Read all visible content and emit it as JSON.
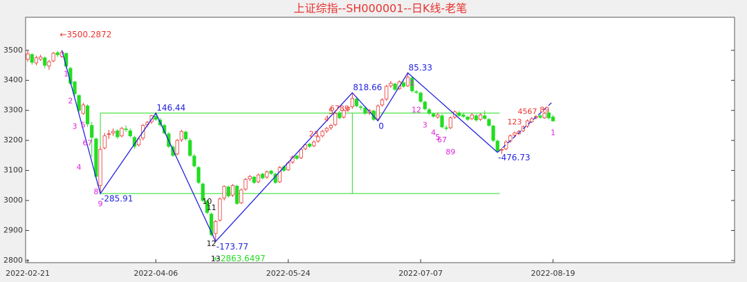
{
  "chart_data": {
    "type": "candlestick",
    "title": "上证综指--SH000001--日K线-老笔",
    "xlim": [
      -0.5,
      165.5
    ],
    "ylim": [
      2793,
      3610
    ],
    "yticks": [
      2800,
      2900,
      3000,
      3100,
      3200,
      3300,
      3400,
      3500
    ],
    "xticks": [
      {
        "value": 0,
        "label": "2022-02-21"
      },
      {
        "value": 30,
        "label": "2022-04-06"
      },
      {
        "value": 61,
        "label": "2022-05-24"
      },
      {
        "value": 92,
        "label": "2022-07-07"
      },
      {
        "value": 123,
        "label": "2022-08-19"
      }
    ],
    "up_color": "#e8332f",
    "down_color": "#22dd22",
    "candles": [
      [
        3470,
        3500,
        3462,
        3488
      ],
      [
        3486,
        3490,
        3452,
        3460
      ],
      [
        3458,
        3482,
        3450,
        3475
      ],
      [
        3470,
        3485,
        3465,
        3478
      ],
      [
        3475,
        3480,
        3440,
        3450
      ],
      [
        3448,
        3468,
        3435,
        3462
      ],
      [
        3465,
        3495,
        3460,
        3490
      ],
      [
        3492,
        3498,
        3478,
        3485
      ],
      [
        3480,
        3500.29,
        3475,
        3494
      ],
      [
        3490,
        3492,
        3440,
        3447
      ],
      [
        3440,
        3445,
        3385,
        3390
      ],
      [
        3395,
        3398,
        3345,
        3355
      ],
      [
        3350,
        3352,
        3292,
        3300
      ],
      [
        3290,
        3325,
        3285,
        3318
      ],
      [
        3315,
        3320,
        3245,
        3255
      ],
      [
        3250,
        3262,
        3145,
        3210
      ],
      [
        3205,
        3210,
        3070,
        3080
      ],
      [
        3050,
        3180,
        3023,
        3170
      ],
      [
        3175,
        3225,
        3170,
        3215
      ],
      [
        3220,
        3235,
        3205,
        3222
      ],
      [
        3225,
        3240,
        3215,
        3230
      ],
      [
        3232,
        3238,
        3205,
        3212
      ],
      [
        3215,
        3245,
        3210,
        3240
      ],
      [
        3238,
        3250,
        3228,
        3236
      ],
      [
        3232,
        3240,
        3210,
        3215
      ],
      [
        3210,
        3215,
        3172,
        3180
      ],
      [
        3185,
        3212,
        3180,
        3205
      ],
      [
        3208,
        3255,
        3200,
        3250
      ],
      [
        3252,
        3265,
        3245,
        3260
      ],
      [
        3262,
        3285,
        3255,
        3282
      ],
      [
        3280,
        3291,
        3265,
        3270
      ],
      [
        3268,
        3275,
        3245,
        3252
      ],
      [
        3250,
        3255,
        3220,
        3225
      ],
      [
        3222,
        3228,
        3175,
        3180
      ],
      [
        3178,
        3185,
        3145,
        3150
      ],
      [
        3155,
        3205,
        3150,
        3200
      ],
      [
        3202,
        3235,
        3195,
        3230
      ],
      [
        3228,
        3232,
        3200,
        3205
      ],
      [
        3200,
        3208,
        3145,
        3150
      ],
      [
        3148,
        3155,
        3110,
        3115
      ],
      [
        3110,
        3115,
        3055,
        3060
      ],
      [
        3055,
        3060,
        2995,
        3000
      ],
      [
        2998,
        3002,
        2955,
        2960
      ],
      [
        2955,
        2960,
        2880,
        2886
      ],
      [
        2890,
        2935,
        2863.65,
        2930
      ],
      [
        2935,
        3010,
        2930,
        3005
      ],
      [
        3008,
        3050,
        3000,
        3047
      ],
      [
        3045,
        3050,
        3010,
        3015
      ],
      [
        3018,
        3055,
        3012,
        3050
      ],
      [
        3048,
        3052,
        2985,
        2990
      ],
      [
        2992,
        3040,
        2988,
        3035
      ],
      [
        3038,
        3075,
        3032,
        3070
      ],
      [
        3072,
        3085,
        3065,
        3080
      ],
      [
        3078,
        3082,
        3055,
        3060
      ],
      [
        3062,
        3090,
        3058,
        3085
      ],
      [
        3088,
        3092,
        3070,
        3075
      ],
      [
        3078,
        3100,
        3072,
        3095
      ],
      [
        3098,
        3102,
        3085,
        3090
      ],
      [
        3088,
        3092,
        3055,
        3060
      ],
      [
        3062,
        3115,
        3058,
        3110
      ],
      [
        3112,
        3118,
        3095,
        3100
      ],
      [
        3102,
        3130,
        3098,
        3125
      ],
      [
        3128,
        3150,
        3122,
        3145
      ],
      [
        3148,
        3152,
        3135,
        3140
      ],
      [
        3142,
        3175,
        3138,
        3170
      ],
      [
        3172,
        3190,
        3168,
        3185
      ],
      [
        3188,
        3192,
        3175,
        3180
      ],
      [
        3182,
        3200,
        3178,
        3195
      ],
      [
        3198,
        3218,
        3192,
        3212
      ],
      [
        3215,
        3235,
        3210,
        3230
      ],
      [
        3232,
        3245,
        3225,
        3240
      ],
      [
        3242,
        3255,
        3235,
        3250
      ],
      [
        3252,
        3295,
        3248,
        3290
      ],
      [
        3292,
        3298,
        3270,
        3275
      ],
      [
        3278,
        3305,
        3272,
        3300
      ],
      [
        3302,
        3315,
        3295,
        3310
      ],
      [
        3312,
        3358.66,
        3305,
        3340
      ],
      [
        3338,
        3345,
        3310,
        3315
      ],
      [
        3312,
        3318,
        3300,
        3310
      ],
      [
        3308,
        3312,
        3285,
        3290
      ],
      [
        3292,
        3305,
        3285,
        3300
      ],
      [
        3298,
        3302,
        3265,
        3270
      ],
      [
        3272,
        3320,
        3265,
        3315
      ],
      [
        3318,
        3340,
        3312,
        3335
      ],
      [
        3338,
        3385,
        3332,
        3380
      ],
      [
        3382,
        3398,
        3375,
        3390
      ],
      [
        3388,
        3392,
        3365,
        3370
      ],
      [
        3372,
        3400,
        3368,
        3395
      ],
      [
        3392,
        3398,
        3375,
        3380
      ],
      [
        3382,
        3425,
        3378,
        3410
      ],
      [
        3408,
        3412,
        3360,
        3365
      ],
      [
        3362,
        3368,
        3355,
        3360
      ],
      [
        3358,
        3362,
        3325,
        3330
      ],
      [
        3328,
        3332,
        3300,
        3305
      ],
      [
        3302,
        3308,
        3285,
        3290
      ],
      [
        3288,
        3292,
        3275,
        3280
      ],
      [
        3278,
        3292,
        3272,
        3285
      ],
      [
        3282,
        3288,
        3240,
        3245
      ],
      [
        3242,
        3250,
        3232,
        3240
      ],
      [
        3242,
        3280,
        3238,
        3275
      ],
      [
        3278,
        3300,
        3272,
        3295
      ],
      [
        3292,
        3298,
        3278,
        3283
      ],
      [
        3285,
        3290,
        3275,
        3280
      ],
      [
        3278,
        3282,
        3265,
        3270
      ],
      [
        3272,
        3290,
        3268,
        3285
      ],
      [
        3282,
        3288,
        3262,
        3268
      ],
      [
        3270,
        3290,
        3265,
        3285
      ],
      [
        3282,
        3300,
        3270,
        3273
      ],
      [
        3270,
        3275,
        3245,
        3250
      ],
      [
        3248,
        3252,
        3195,
        3200
      ],
      [
        3198,
        3202,
        3160,
        3165
      ],
      [
        3168,
        3175,
        3155,
        3170
      ],
      [
        3172,
        3200,
        3168,
        3195
      ],
      [
        3198,
        3220,
        3192,
        3215
      ],
      [
        3218,
        3230,
        3212,
        3225
      ],
      [
        3222,
        3235,
        3218,
        3230
      ],
      [
        3232,
        3250,
        3228,
        3245
      ],
      [
        3248,
        3270,
        3242,
        3265
      ],
      [
        3262,
        3278,
        3258,
        3272
      ],
      [
        3275,
        3285,
        3270,
        3280
      ],
      [
        3282,
        3288,
        3272,
        3277
      ],
      [
        3275,
        3295,
        3272,
        3290
      ],
      [
        3292,
        3298,
        3270,
        3275
      ],
      [
        3278,
        3285,
        3262,
        3265
      ]
    ],
    "pen": {
      "color": "#2222dd",
      "x": [
        8,
        17,
        30,
        44,
        76,
        82,
        89,
        110
      ],
      "y": [
        3500.2872,
        3023,
        3291,
        2863.6497,
        3358.66,
        3265,
        3425,
        3160
      ],
      "labels": [
        null,
        "-285.91",
        "146.44",
        "-173.77",
        "818.66",
        "0",
        "85.33",
        "-476.73"
      ]
    },
    "pen_pending": {
      "x": [
        110,
        123
      ],
      "y": [
        3160,
        3330
      ]
    },
    "pivot": {
      "color": "#22dd22",
      "x_start": 17,
      "x_split": 76,
      "x_end": 110.5,
      "low": 3023,
      "high": 3291
    },
    "extremes": [
      {
        "x": 8,
        "y": 3500.2872,
        "label": "←3500.2872",
        "color": "#e8332f"
      },
      {
        "x": 44,
        "y": 2863.6497,
        "label": "←2863.6497",
        "color": "#22dd22"
      }
    ],
    "counts": [
      {
        "x": 9,
        "y": 3420,
        "label": "1",
        "color": "#dd22dd"
      },
      {
        "x": 10,
        "y": 3330,
        "label": "2",
        "color": "#dd22dd"
      },
      {
        "x": 11,
        "y": 3245,
        "label": "3",
        "color": "#dd22dd"
      },
      {
        "x": 13,
        "y": 3250,
        "label": "5",
        "color": "#dd22dd"
      },
      {
        "x": 14,
        "y": 3190,
        "label": "67",
        "color": "#dd22dd"
      },
      {
        "x": 12,
        "y": 3110,
        "label": "4",
        "color": "#dd22dd"
      },
      {
        "x": 16,
        "y": 3028,
        "label": "8",
        "color": "#dd22dd"
      },
      {
        "x": 17,
        "y": 2988,
        "label": "9",
        "color": "#dd22dd"
      },
      {
        "x": 42,
        "y": 2995,
        "label": "10",
        "color": "#111111"
      },
      {
        "x": 43,
        "y": 2975,
        "label": "11",
        "color": "#111111"
      },
      {
        "x": 43,
        "y": 2855,
        "label": "12",
        "color": "#111111"
      },
      {
        "x": 44,
        "y": 2805,
        "label": "13",
        "color": "#111111"
      },
      {
        "x": 67,
        "y": 3220,
        "label": "23",
        "color": "#e8332f"
      },
      {
        "x": 70,
        "y": 3270,
        "label": "4",
        "color": "#e8332f"
      },
      {
        "x": 71,
        "y": 3295,
        "label": "5",
        "color": "#e8332f"
      },
      {
        "x": 73,
        "y": 3305,
        "label": "6789",
        "color": "#e8332f"
      },
      {
        "x": 90,
        "y": 3390,
        "label": "1",
        "color": "#dd22dd"
      },
      {
        "x": 91,
        "y": 3300,
        "label": "12",
        "color": "#dd22dd"
      },
      {
        "x": 93,
        "y": 3250,
        "label": "3",
        "color": "#dd22dd"
      },
      {
        "x": 95,
        "y": 3225,
        "label": "4",
        "color": "#dd22dd"
      },
      {
        "x": 96,
        "y": 3210,
        "label": "5",
        "color": "#dd22dd"
      },
      {
        "x": 97,
        "y": 3200,
        "label": "67",
        "color": "#dd22dd"
      },
      {
        "x": 99,
        "y": 3160,
        "label": "89",
        "color": "#dd22dd"
      },
      {
        "x": 114,
        "y": 3260,
        "label": "123",
        "color": "#e8332f"
      },
      {
        "x": 117,
        "y": 3295,
        "label": "4567",
        "color": "#e8332f"
      },
      {
        "x": 121,
        "y": 3300,
        "label": "89",
        "color": "#e8332f"
      },
      {
        "x": 123,
        "y": 3225,
        "label": "1",
        "color": "#dd22dd"
      }
    ]
  }
}
